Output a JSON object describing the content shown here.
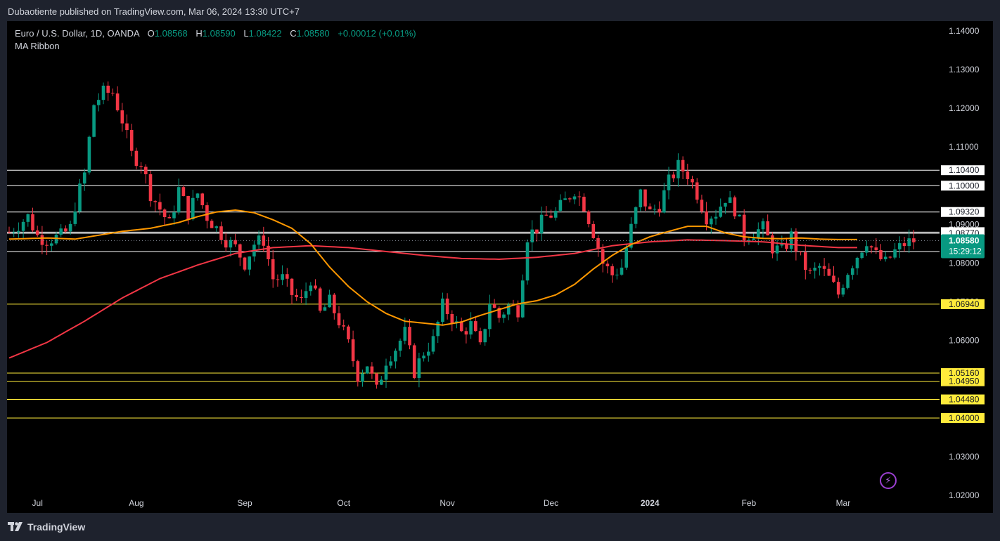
{
  "header": {
    "published": "Dubaotiente published on TradingView.com, Mar 06, 2024 13:30 UTC+7"
  },
  "legend": {
    "symbol": "Euro / U.S. Dollar, 1D, OANDA",
    "open_label": "O",
    "open": "1.08568",
    "high_label": "H",
    "high": "1.08590",
    "low_label": "L",
    "low": "1.08422",
    "close_label": "C",
    "close": "1.08580",
    "change": "+0.00012 (+0.01%)",
    "indicator": "MA Ribbon"
  },
  "colors": {
    "up": "#089981",
    "down": "#f23645",
    "ma_fast": "#ff9800",
    "ma_slow": "#f23645",
    "white_level": "#ffffff",
    "yellow_level": "#ffeb3b",
    "price_tag": "#089981"
  },
  "footer": {
    "brand": "TradingView",
    "brand_icon": "tradingview-logo-icon",
    "tool_icon": "lightning-icon"
  },
  "chart_data": {
    "type": "candlestick",
    "symbol": "EURUSD",
    "timeframe": "1D",
    "y_ticks": [
      "1.14000",
      "1.13000",
      "1.12000",
      "1.11000",
      "1.10000",
      "1.09000",
      "1.08000",
      "1.07000",
      "1.06000",
      "1.05000",
      "1.04000",
      "1.03000",
      "1.02000"
    ],
    "ylim": [
      1.0155,
      1.1425
    ],
    "x_ticks": [
      {
        "label": "Jul",
        "index": 6
      },
      {
        "label": "Aug",
        "index": 27
      },
      {
        "label": "Sep",
        "index": 50
      },
      {
        "label": "Oct",
        "index": 71
      },
      {
        "label": "Nov",
        "index": 93
      },
      {
        "label": "Dec",
        "index": 115
      },
      {
        "label": "2024",
        "index": 136
      },
      {
        "label": "Feb",
        "index": 157
      },
      {
        "label": "Mar",
        "index": 177
      }
    ],
    "white_levels": [
      {
        "value": 1.104,
        "label": "1.10400"
      },
      {
        "value": 1.1,
        "label": "1.10000"
      },
      {
        "value": 1.0932,
        "label": "1.09320"
      },
      {
        "value": 1.088,
        "label": "1.08800"
      },
      {
        "value": 1.0877,
        "label": "1.08770"
      },
      {
        "value": 1.083,
        "label": "1.08300"
      }
    ],
    "yellow_levels": [
      {
        "value": 1.0694,
        "label": "1.06940"
      },
      {
        "value": 1.0516,
        "label": "1.05160"
      },
      {
        "value": 1.0495,
        "label": "1.04950"
      },
      {
        "value": 1.0448,
        "label": "1.04480"
      },
      {
        "value": 1.04,
        "label": "1.04000"
      }
    ],
    "last_price": {
      "value": 1.0858,
      "label": "1.08580",
      "countdown": "15:29:12"
    },
    "close_path": [
      [
        0,
        1.088
      ],
      [
        4,
        1.092
      ],
      [
        6,
        1.087
      ],
      [
        8,
        1.086
      ],
      [
        11,
        1.087
      ],
      [
        13,
        1.089
      ],
      [
        14,
        1.095
      ],
      [
        16,
        1.103
      ],
      [
        18,
        1.121
      ],
      [
        20,
        1.124
      ],
      [
        22,
        1.124
      ],
      [
        24,
        1.117
      ],
      [
        26,
        1.108
      ],
      [
        28,
        1.106
      ],
      [
        30,
        1.098
      ],
      [
        32,
        1.094
      ],
      [
        34,
        1.09
      ],
      [
        36,
        1.099
      ],
      [
        38,
        1.093
      ],
      [
        40,
        1.098
      ],
      [
        42,
        1.092
      ],
      [
        44,
        1.089
      ],
      [
        46,
        1.086
      ],
      [
        48,
        1.084
      ],
      [
        50,
        1.08
      ],
      [
        52,
        1.085
      ],
      [
        54,
        1.086
      ],
      [
        56,
        1.076
      ],
      [
        58,
        1.076
      ],
      [
        60,
        1.072
      ],
      [
        62,
        1.07
      ],
      [
        64,
        1.076
      ],
      [
        66,
        1.067
      ],
      [
        68,
        1.07
      ],
      [
        70,
        1.065
      ],
      [
        72,
        1.059
      ],
      [
        74,
        1.051
      ],
      [
        76,
        1.054
      ],
      [
        78,
        1.047
      ],
      [
        80,
        1.055
      ],
      [
        82,
        1.058
      ],
      [
        84,
        1.062
      ],
      [
        86,
        1.052
      ],
      [
        88,
        1.057
      ],
      [
        90,
        1.06
      ],
      [
        92,
        1.069
      ],
      [
        94,
        1.066
      ],
      [
        96,
        1.062
      ],
      [
        98,
        1.064
      ],
      [
        100,
        1.058
      ],
      [
        102,
        1.07
      ],
      [
        104,
        1.066
      ],
      [
        106,
        1.069
      ],
      [
        108,
        1.068
      ],
      [
        110,
        1.087
      ],
      [
        112,
        1.089
      ],
      [
        114,
        1.092
      ],
      [
        116,
        1.093
      ],
      [
        118,
        1.096
      ],
      [
        120,
        1.099
      ],
      [
        122,
        1.095
      ],
      [
        124,
        1.088
      ],
      [
        126,
        1.08
      ],
      [
        128,
        1.077
      ],
      [
        130,
        1.079
      ],
      [
        132,
        1.089
      ],
      [
        134,
        1.098
      ],
      [
        136,
        1.093
      ],
      [
        138,
        1.095
      ],
      [
        140,
        1.101
      ],
      [
        142,
        1.105
      ],
      [
        144,
        1.103
      ],
      [
        146,
        1.098
      ],
      [
        148,
        1.092
      ],
      [
        150,
        1.093
      ],
      [
        152,
        1.097
      ],
      [
        154,
        1.094
      ],
      [
        156,
        1.087
      ],
      [
        158,
        1.088
      ],
      [
        160,
        1.089
      ],
      [
        162,
        1.084
      ],
      [
        164,
        1.083
      ],
      [
        166,
        1.087
      ],
      [
        168,
        1.081
      ],
      [
        170,
        1.077
      ],
      [
        172,
        1.079
      ],
      [
        174,
        1.076
      ],
      [
        176,
        1.072
      ],
      [
        178,
        1.078
      ],
      [
        180,
        1.082
      ],
      [
        182,
        1.086
      ],
      [
        184,
        1.082
      ],
      [
        186,
        1.08
      ],
      [
        188,
        1.083
      ],
      [
        190,
        1.085
      ],
      [
        192,
        1.0858
      ]
    ],
    "ma_fast_path": [
      [
        0,
        1.0862
      ],
      [
        8,
        1.0865
      ],
      [
        14,
        1.0862
      ],
      [
        18,
        1.087
      ],
      [
        24,
        1.0882
      ],
      [
        30,
        1.089
      ],
      [
        36,
        1.0905
      ],
      [
        40,
        1.092
      ],
      [
        44,
        1.0932
      ],
      [
        48,
        1.0937
      ],
      [
        52,
        1.093
      ],
      [
        56,
        1.0912
      ],
      [
        60,
        1.089
      ],
      [
        64,
        1.085
      ],
      [
        68,
        1.079
      ],
      [
        72,
        1.074
      ],
      [
        76,
        1.07
      ],
      [
        80,
        1.067
      ],
      [
        84,
        1.065
      ],
      [
        88,
        1.0645
      ],
      [
        92,
        1.064
      ],
      [
        96,
        1.0648
      ],
      [
        100,
        1.0665
      ],
      [
        104,
        1.068
      ],
      [
        108,
        1.0695
      ],
      [
        112,
        1.0703
      ],
      [
        116,
        1.0718
      ],
      [
        120,
        1.0745
      ],
      [
        124,
        1.0785
      ],
      [
        128,
        1.082
      ],
      [
        132,
        1.0848
      ],
      [
        136,
        1.0868
      ],
      [
        140,
        1.0882
      ],
      [
        144,
        1.0895
      ],
      [
        148,
        1.0895
      ],
      [
        152,
        1.0878
      ],
      [
        156,
        1.0868
      ],
      [
        160,
        1.0864
      ],
      [
        164,
        1.0863
      ],
      [
        168,
        1.0865
      ],
      [
        172,
        1.0862
      ],
      [
        176,
        1.0861
      ],
      [
        180,
        1.0861
      ]
    ],
    "ma_slow_path": [
      [
        0,
        1.0555
      ],
      [
        8,
        1.0595
      ],
      [
        16,
        1.065
      ],
      [
        24,
        1.071
      ],
      [
        32,
        1.076
      ],
      [
        40,
        1.0795
      ],
      [
        48,
        1.0825
      ],
      [
        56,
        1.084
      ],
      [
        64,
        1.0845
      ],
      [
        72,
        1.084
      ],
      [
        80,
        1.083
      ],
      [
        88,
        1.082
      ],
      [
        96,
        1.0812
      ],
      [
        104,
        1.081
      ],
      [
        112,
        1.0815
      ],
      [
        120,
        1.0825
      ],
      [
        128,
        1.0845
      ],
      [
        136,
        1.0855
      ],
      [
        144,
        1.086
      ],
      [
        152,
        1.0858
      ],
      [
        160,
        1.0855
      ],
      [
        168,
        1.0846
      ],
      [
        176,
        1.084
      ],
      [
        180,
        1.084
      ]
    ]
  }
}
